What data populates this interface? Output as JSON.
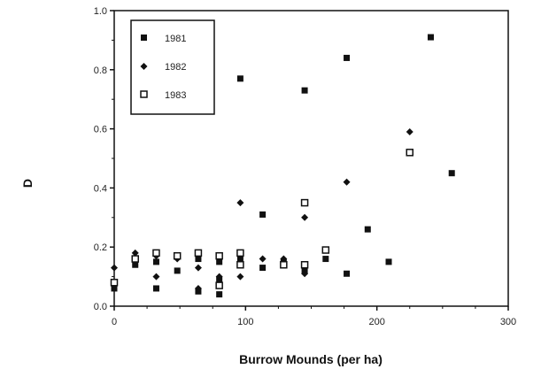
{
  "chart_data": {
    "type": "scatter",
    "title": "",
    "xlabel": "Burrow Mounds (per ha)",
    "ylabel": "D",
    "xlim": [
      0,
      300
    ],
    "ylim": [
      0.0,
      1.0
    ],
    "xticks": [
      "0",
      "100",
      "200",
      "300"
    ],
    "yticks": [
      "0.0",
      "0.2",
      "0.4",
      "0.6",
      "0.8",
      "1.0"
    ],
    "legend_position": "top-left",
    "series": [
      {
        "name": "1981",
        "marker": "square-filled",
        "points": [
          [
            0,
            0.06
          ],
          [
            16,
            0.14
          ],
          [
            32,
            0.06
          ],
          [
            32,
            0.15
          ],
          [
            48,
            0.12
          ],
          [
            64,
            0.05
          ],
          [
            64,
            0.16
          ],
          [
            80,
            0.04
          ],
          [
            80,
            0.09
          ],
          [
            80,
            0.15
          ],
          [
            96,
            0.77
          ],
          [
            96,
            0.16
          ],
          [
            113,
            0.31
          ],
          [
            113,
            0.13
          ],
          [
            129,
            0.15
          ],
          [
            145,
            0.73
          ],
          [
            145,
            0.12
          ],
          [
            161,
            0.16
          ],
          [
            177,
            0.84
          ],
          [
            177,
            0.11
          ],
          [
            193,
            0.26
          ],
          [
            209,
            0.15
          ],
          [
            241,
            0.91
          ],
          [
            257,
            0.45
          ]
        ]
      },
      {
        "name": "1982",
        "marker": "diamond-filled",
        "points": [
          [
            0,
            0.13
          ],
          [
            16,
            0.18
          ],
          [
            32,
            0.17
          ],
          [
            32,
            0.1
          ],
          [
            48,
            0.16
          ],
          [
            64,
            0.13
          ],
          [
            64,
            0.06
          ],
          [
            80,
            0.1
          ],
          [
            96,
            0.35
          ],
          [
            96,
            0.1
          ],
          [
            113,
            0.16
          ],
          [
            129,
            0.16
          ],
          [
            145,
            0.3
          ],
          [
            145,
            0.11
          ],
          [
            177,
            0.42
          ],
          [
            225,
            0.59
          ]
        ]
      },
      {
        "name": "1983",
        "marker": "square-open",
        "points": [
          [
            0,
            0.08
          ],
          [
            16,
            0.16
          ],
          [
            32,
            0.18
          ],
          [
            48,
            0.17
          ],
          [
            64,
            0.18
          ],
          [
            80,
            0.17
          ],
          [
            80,
            0.07
          ],
          [
            96,
            0.18
          ],
          [
            96,
            0.14
          ],
          [
            129,
            0.14
          ],
          [
            145,
            0.35
          ],
          [
            145,
            0.14
          ],
          [
            161,
            0.19
          ],
          [
            225,
            0.52
          ]
        ]
      }
    ]
  }
}
